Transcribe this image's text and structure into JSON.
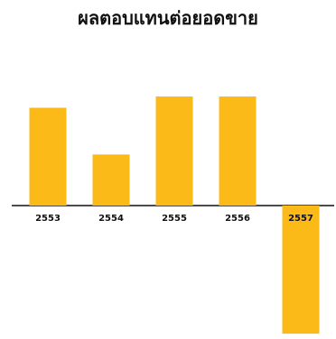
{
  "chart_data": {
    "type": "bar",
    "title": "ผลตอบแทนต่อยอดขาย",
    "categories": [
      "2553",
      "2554",
      "2555",
      "2556",
      "2557"
    ],
    "values": [
      11.3,
      5.9,
      12.6,
      12.6,
      -14.8
    ],
    "ylim": [
      -16,
      16
    ],
    "bar_color": "#FBBA18",
    "axis_color": "#111111",
    "grid": false,
    "legend": "none",
    "tick_labels_position": "below-axis-line"
  }
}
